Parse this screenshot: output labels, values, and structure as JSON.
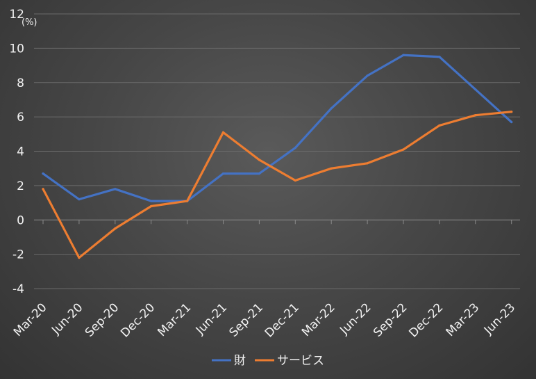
{
  "chart_data": {
    "type": "line",
    "unit_label": "(%)",
    "categories": [
      "Mar-20",
      "Jun-20",
      "Sep-20",
      "Dec-20",
      "Mar-21",
      "Jun-21",
      "Sep-21",
      "Dec-21",
      "Mar-22",
      "Jun-22",
      "Sep-22",
      "Dec-22",
      "Mar-23",
      "Jun-23"
    ],
    "ylim": [
      -4,
      12
    ],
    "yticks": [
      -4,
      -2,
      0,
      2,
      4,
      6,
      8,
      10,
      12
    ],
    "grid": true,
    "legend_position": "bottom",
    "series": [
      {
        "name": "財",
        "color": "#4472C4",
        "values": [
          2.7,
          1.2,
          1.8,
          1.1,
          1.1,
          2.7,
          2.7,
          4.2,
          6.5,
          8.4,
          9.6,
          9.5,
          7.6,
          5.7
        ]
      },
      {
        "name": "サービス",
        "color": "#ED7D31",
        "values": [
          1.8,
          -2.2,
          -0.5,
          0.8,
          1.1,
          5.1,
          3.5,
          2.3,
          3.0,
          3.3,
          4.1,
          5.5,
          6.1,
          6.3
        ]
      }
    ]
  }
}
